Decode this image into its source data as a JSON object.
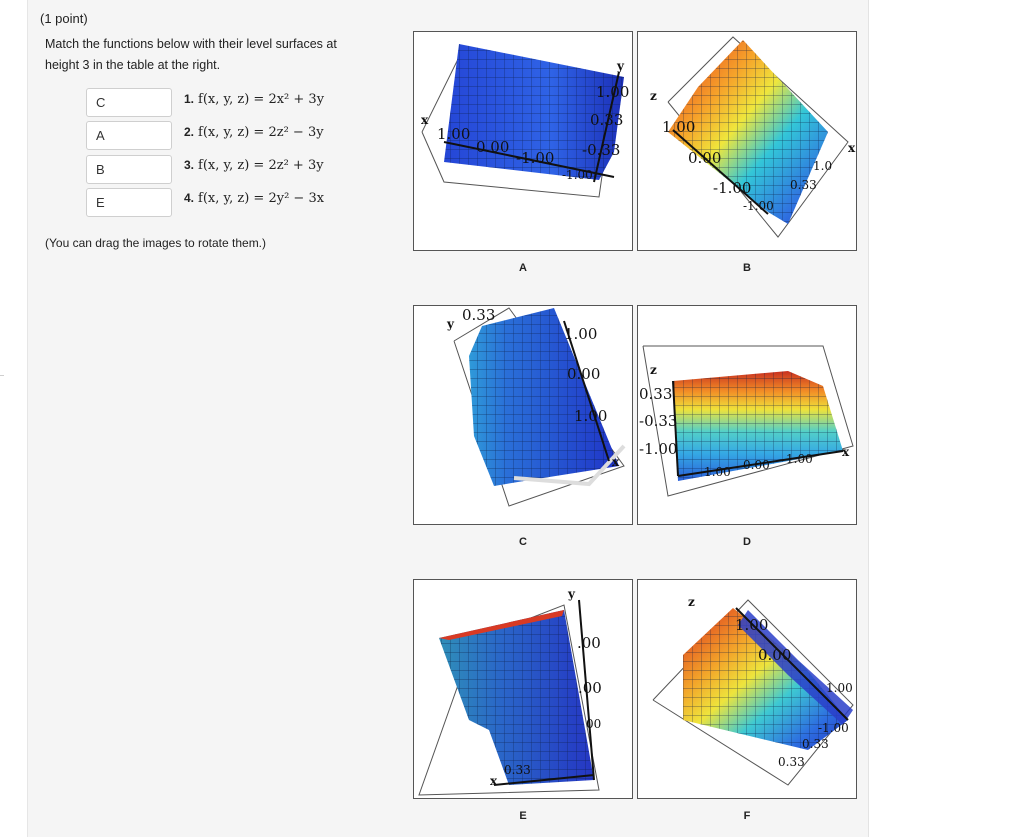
{
  "problem": {
    "points": "(1 point)",
    "instruction_line1": "Match the functions below with their level surfaces at",
    "instruction_line2": "height 3 in the table at the right.",
    "note": "(You can drag the images to rotate them.)"
  },
  "matches": [
    {
      "answer": "C",
      "number": "1.",
      "function": "f(x, y, z) = 2x² + 3y"
    },
    {
      "answer": "A",
      "number": "2.",
      "function": "f(x, y, z) = 2z² − 3y"
    },
    {
      "answer": "B",
      "number": "3.",
      "function": "f(x, y, z) = 2z² + 3y"
    },
    {
      "answer": "E",
      "number": "4.",
      "function": "f(x, y, z) = 2y² − 3x"
    }
  ],
  "figures": [
    {
      "caption": "A",
      "axes": [
        "x",
        "y"
      ],
      "ticks": [
        "1.00",
        "0.33",
        "-0.33",
        "1.00",
        "0.00",
        "-1.00",
        "-1.00"
      ]
    },
    {
      "caption": "B",
      "axes": [
        "z",
        "x"
      ],
      "ticks": [
        "1.00",
        "0.00",
        "-1.00",
        "-1.00",
        "0.33",
        "1.0"
      ]
    },
    {
      "caption": "C",
      "axes": [
        "y",
        "x"
      ],
      "ticks": [
        "0.33",
        "1.00",
        "0.00",
        "1.00"
      ]
    },
    {
      "caption": "D",
      "axes": [
        "z",
        "x"
      ],
      "ticks": [
        "0.33",
        "-0.33",
        "-1.00",
        "-1.00",
        "0.00",
        "1.00"
      ]
    },
    {
      "caption": "E",
      "axes": [
        "y",
        "x"
      ],
      "ticks": [
        ".00",
        ".00",
        "00",
        "0.33"
      ]
    },
    {
      "caption": "F",
      "axes": [
        "z"
      ],
      "ticks": [
        "1.00",
        "0.00",
        "1.00",
        "-1.00",
        "0.33",
        "0.33"
      ]
    }
  ],
  "colors": {
    "panel_bg": "#f5f5f5",
    "surface_blue": "#2a52d8",
    "surface_cyan": "#35c9d6",
    "surface_yellow": "#f2e83a",
    "surface_red": "#e2261f"
  }
}
